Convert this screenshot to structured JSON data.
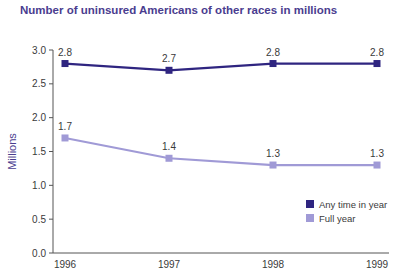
{
  "chart_data": {
    "type": "line",
    "title": "Number of uninsured Americans of other races in millions",
    "ylabel": "Millions",
    "categories": [
      "1996",
      "1997",
      "1998",
      "1999"
    ],
    "series": [
      {
        "name": "Any time in year",
        "color": "#2f2580",
        "values": [
          2.8,
          2.7,
          2.8,
          2.8
        ],
        "marker": "square"
      },
      {
        "name": "Full year",
        "color": "#a09ad6",
        "values": [
          1.7,
          1.4,
          1.3,
          1.3
        ],
        "marker": "square"
      }
    ],
    "ylim": [
      0,
      3
    ],
    "yticks": [
      {
        "value": 0,
        "label": "0.0"
      },
      0.5,
      {
        "value": 1,
        "label": "1.0"
      },
      1.5,
      {
        "value": 2,
        "label": "2.0"
      },
      2.5,
      {
        "value": 3,
        "label": "3.0"
      }
    ],
    "data_labels": true,
    "legend": "lower right",
    "grid": false
  }
}
